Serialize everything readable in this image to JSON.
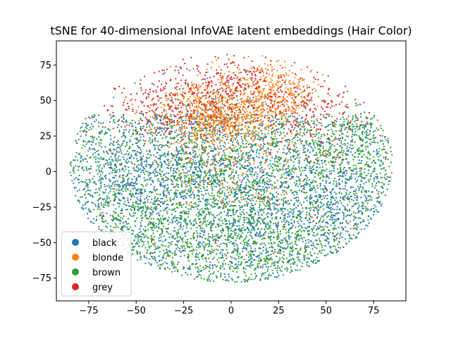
{
  "chart_data": {
    "type": "scatter",
    "title": "tSNE for 40-dimensional InfoVAE latent embeddings (Hair Color)",
    "xlabel": "",
    "ylabel": "",
    "xlim": [
      -92,
      92
    ],
    "ylim": [
      -91,
      92
    ],
    "xticks": [
      -75,
      -50,
      -25,
      0,
      25,
      50,
      75
    ],
    "yticks": [
      -75,
      -50,
      -25,
      0,
      25,
      50,
      75
    ],
    "xtick_labels": [
      "−75",
      "−50",
      "−25",
      "0",
      "25",
      "50",
      "75"
    ],
    "ytick_labels": [
      "−75",
      "−50",
      "−25",
      "0",
      "25",
      "50",
      "75"
    ],
    "grid": false,
    "legend_position": "lower-left",
    "approx_point_count_per_series": [
      3200,
      1400,
      3000,
      900
    ],
    "series": [
      {
        "name": "black",
        "color": "#1f77b4"
      },
      {
        "name": "blonde",
        "color": "#ff7f0e"
      },
      {
        "name": "brown",
        "color": "#2ca02c"
      },
      {
        "name": "grey",
        "color": "#d62728"
      }
    ],
    "cluster_centers": {
      "black": [
        [
          -45,
          -5
        ],
        [
          55,
          -20
        ],
        [
          10,
          -30
        ],
        [
          -10,
          20
        ]
      ],
      "blonde": [
        [
          -15,
          40
        ],
        [
          20,
          55
        ],
        [
          0,
          35
        ]
      ],
      "brown": [
        [
          0,
          -10
        ],
        [
          20,
          -55
        ],
        [
          60,
          15
        ],
        [
          -40,
          -40
        ]
      ],
      "grey": [
        [
          -30,
          45
        ],
        [
          40,
          40
        ],
        [
          0,
          60
        ]
      ]
    }
  }
}
